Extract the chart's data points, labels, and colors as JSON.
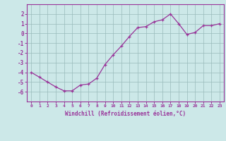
{
  "x": [
    0,
    1,
    2,
    3,
    4,
    5,
    6,
    7,
    8,
    9,
    10,
    11,
    12,
    13,
    14,
    15,
    16,
    17,
    18,
    19,
    20,
    21,
    22,
    23
  ],
  "y": [
    -4.0,
    -4.5,
    -5.0,
    -5.5,
    -5.9,
    -5.9,
    -5.3,
    -5.2,
    -4.6,
    -3.2,
    -2.2,
    -1.3,
    -0.3,
    0.6,
    0.7,
    1.2,
    1.4,
    2.0,
    1.0,
    -0.1,
    0.1,
    0.8,
    0.8,
    1.0
  ],
  "line_color": "#993399",
  "marker": "+",
  "marker_size": 3,
  "bg_color": "#cce8e8",
  "grid_color": "#99bbbb",
  "xlabel": "Windchill (Refroidissement éolien,°C)",
  "xlabel_color": "#993399",
  "tick_color": "#993399",
  "ylim": [
    -7,
    3
  ],
  "xlim": [
    -0.5,
    23.5
  ],
  "yticks": [
    -6,
    -5,
    -4,
    -3,
    -2,
    -1,
    0,
    1,
    2
  ],
  "xticks": [
    0,
    1,
    2,
    3,
    4,
    5,
    6,
    7,
    8,
    9,
    10,
    11,
    12,
    13,
    14,
    15,
    16,
    17,
    18,
    19,
    20,
    21,
    22,
    23
  ],
  "xtick_labels": [
    "0",
    "1",
    "2",
    "3",
    "4",
    "5",
    "6",
    "7",
    "8",
    "9",
    "10",
    "11",
    "12",
    "13",
    "14",
    "15",
    "16",
    "17",
    "18",
    "19",
    "20",
    "21",
    "22",
    "23"
  ]
}
